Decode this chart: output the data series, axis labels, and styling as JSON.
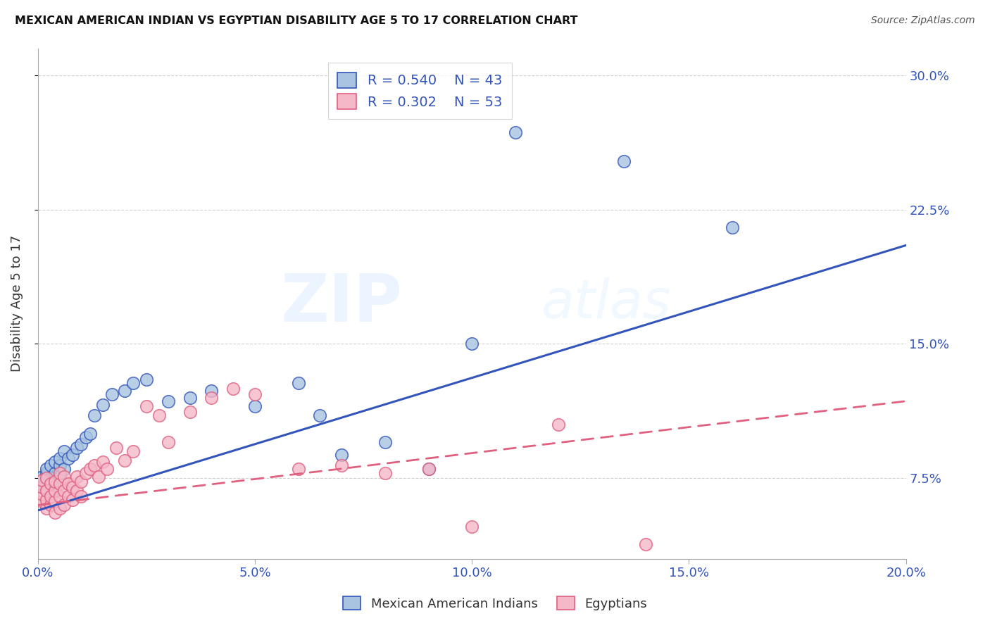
{
  "title": "MEXICAN AMERICAN INDIAN VS EGYPTIAN DISABILITY AGE 5 TO 17 CORRELATION CHART",
  "source": "Source: ZipAtlas.com",
  "ylabel": "Disability Age 5 to 17",
  "yticks": [
    "7.5%",
    "15.0%",
    "22.5%",
    "30.0%"
  ],
  "ytick_vals": [
    0.075,
    0.15,
    0.225,
    0.3
  ],
  "xlim": [
    0.0,
    0.2
  ],
  "ylim": [
    0.03,
    0.315
  ],
  "blue_R": 0.54,
  "blue_N": 43,
  "pink_R": 0.302,
  "pink_N": 53,
  "blue_color": "#A8C4E0",
  "pink_color": "#F4B8C8",
  "blue_line_color": "#3355BB",
  "pink_line_color": "#E06080",
  "background_color": "#FFFFFF",
  "watermark_zip": "ZIP",
  "watermark_atlas": "atlas",
  "blue_scatter_x": [
    0.001,
    0.001,
    0.001,
    0.002,
    0.002,
    0.002,
    0.002,
    0.003,
    0.003,
    0.003,
    0.004,
    0.004,
    0.004,
    0.005,
    0.005,
    0.005,
    0.006,
    0.006,
    0.007,
    0.008,
    0.009,
    0.01,
    0.011,
    0.012,
    0.013,
    0.015,
    0.017,
    0.02,
    0.022,
    0.025,
    0.03,
    0.035,
    0.04,
    0.05,
    0.06,
    0.065,
    0.07,
    0.08,
    0.09,
    0.1,
    0.11,
    0.135,
    0.16
  ],
  "blue_scatter_y": [
    0.07,
    0.074,
    0.076,
    0.068,
    0.073,
    0.078,
    0.08,
    0.072,
    0.075,
    0.082,
    0.07,
    0.078,
    0.084,
    0.076,
    0.082,
    0.086,
    0.08,
    0.09,
    0.086,
    0.088,
    0.092,
    0.094,
    0.098,
    0.1,
    0.11,
    0.116,
    0.122,
    0.124,
    0.128,
    0.13,
    0.118,
    0.12,
    0.124,
    0.115,
    0.128,
    0.11,
    0.088,
    0.095,
    0.08,
    0.15,
    0.268,
    0.252,
    0.215
  ],
  "pink_scatter_x": [
    0.001,
    0.001,
    0.001,
    0.001,
    0.002,
    0.002,
    0.002,
    0.002,
    0.003,
    0.003,
    0.003,
    0.004,
    0.004,
    0.004,
    0.004,
    0.005,
    0.005,
    0.005,
    0.005,
    0.006,
    0.006,
    0.006,
    0.007,
    0.007,
    0.008,
    0.008,
    0.009,
    0.009,
    0.01,
    0.01,
    0.011,
    0.012,
    0.013,
    0.014,
    0.015,
    0.016,
    0.018,
    0.02,
    0.022,
    0.025,
    0.028,
    0.03,
    0.035,
    0.04,
    0.045,
    0.05,
    0.06,
    0.07,
    0.08,
    0.09,
    0.1,
    0.12,
    0.14
  ],
  "pink_scatter_y": [
    0.062,
    0.066,
    0.07,
    0.074,
    0.058,
    0.063,
    0.068,
    0.075,
    0.06,
    0.065,
    0.072,
    0.056,
    0.062,
    0.068,
    0.073,
    0.058,
    0.065,
    0.072,
    0.078,
    0.06,
    0.068,
    0.076,
    0.065,
    0.072,
    0.063,
    0.07,
    0.068,
    0.076,
    0.065,
    0.073,
    0.078,
    0.08,
    0.082,
    0.076,
    0.084,
    0.08,
    0.092,
    0.085,
    0.09,
    0.115,
    0.11,
    0.095,
    0.112,
    0.12,
    0.125,
    0.122,
    0.08,
    0.082,
    0.078,
    0.08,
    0.048,
    0.105,
    0.038
  ],
  "blue_line_x0": 0.0,
  "blue_line_y0": 0.057,
  "blue_line_x1": 0.2,
  "blue_line_y1": 0.205,
  "pink_line_x0": 0.0,
  "pink_line_y0": 0.06,
  "pink_line_x1": 0.2,
  "pink_line_y1": 0.118
}
